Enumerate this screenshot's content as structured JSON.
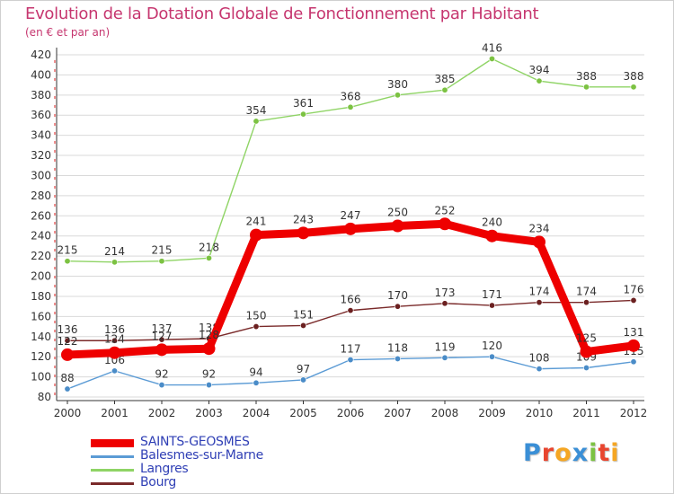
{
  "header": {
    "title": "Evolution de la Dotation Globale de Fonctionnement par Habitant",
    "subtitle": "(en € et par an)"
  },
  "logo": {
    "text": "Proxiti",
    "letters": [
      "P",
      "r",
      "o",
      "x",
      "i",
      "t",
      "i"
    ],
    "colors": [
      "#3a8fd6",
      "#e8452f",
      "#f5a623",
      "#3a8fd6",
      "#7cc242",
      "#e8452f",
      "#f5a623"
    ]
  },
  "chart_data": {
    "type": "line",
    "title": "Evolution de la Dotation Globale de Fonctionnement par Habitant",
    "subtitle": "(en € et par an)",
    "xlabel": "",
    "ylabel": "",
    "x": [
      "2000",
      "2001",
      "2002",
      "2003",
      "2004",
      "2005",
      "2006",
      "2007",
      "2008",
      "2009",
      "2010",
      "2011",
      "2012"
    ],
    "ylim": [
      80,
      420
    ],
    "yticks": [
      80,
      100,
      120,
      140,
      160,
      180,
      200,
      220,
      240,
      260,
      280,
      300,
      320,
      340,
      360,
      380,
      400,
      420
    ],
    "grid": "horizontal",
    "legend_position": "bottom-left",
    "series": [
      {
        "name": "Langres",
        "color": "#8fd465",
        "marker": "#7cc242",
        "values": [
          215,
          214,
          215,
          218,
          354,
          361,
          368,
          380,
          385,
          416,
          394,
          388,
          388
        ],
        "labels": [
          "215",
          "214",
          "215",
          "218",
          "354",
          "361",
          "368",
          "380",
          "385",
          "416",
          "394",
          "388",
          "388"
        ]
      },
      {
        "name": "Bourg",
        "color": "#7a2a2a",
        "marker": "#6b2020",
        "values": [
          136,
          136,
          137,
          138,
          150,
          151,
          166,
          170,
          173,
          171,
          174,
          174,
          176
        ],
        "labels": [
          "136",
          "136",
          "137",
          "138",
          "150",
          "151",
          "166",
          "170",
          "173",
          "171",
          "174",
          "174",
          "176"
        ]
      },
      {
        "name": "Balesmes-sur-Marne",
        "color": "#5b9bd5",
        "marker": "#4a8cc8",
        "values": [
          88,
          106,
          92,
          92,
          94,
          97,
          117,
          118,
          119,
          120,
          108,
          109,
          115
        ],
        "labels": [
          "88",
          "106",
          "92",
          "92",
          "94",
          "97",
          "117",
          "118",
          "119",
          "120",
          "108",
          "109",
          "115"
        ]
      },
      {
        "name": "SAINTS-GEOSMES",
        "color": "#ee0000",
        "marker": "#ee0000",
        "values": [
          122,
          124,
          127,
          128,
          241,
          243,
          247,
          250,
          252,
          240,
          234,
          125,
          131
        ],
        "labels": [
          "122",
          "124",
          "127",
          "128",
          "241",
          "243",
          "247",
          "250",
          "252",
          "240",
          "234",
          "125",
          "131"
        ]
      }
    ],
    "legend_order": [
      "SAINTS-GEOSMES",
      "Balesmes-sur-Marne",
      "Langres",
      "Bourg"
    ]
  }
}
